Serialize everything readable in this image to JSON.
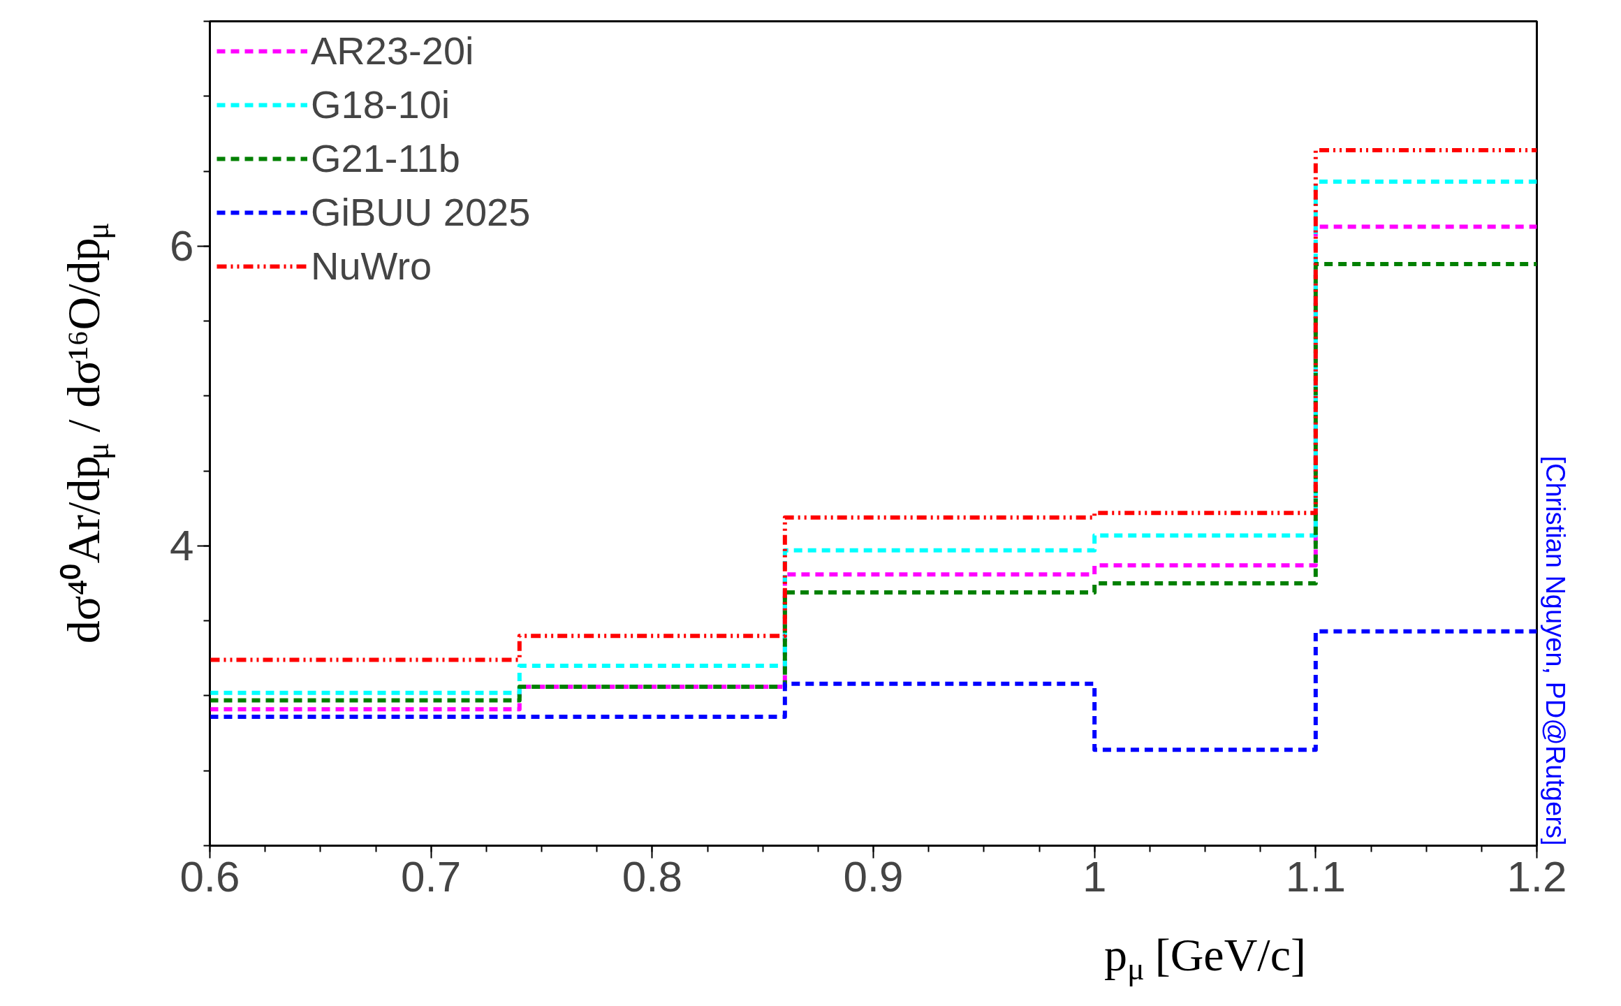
{
  "chart_data": {
    "type": "histogram",
    "bins": [
      0.6,
      0.74,
      0.86,
      1.0,
      1.1,
      1.2
    ],
    "series": [
      {
        "name": "AR23-20i",
        "color": "#ff00ff",
        "line_style": "dashed",
        "values": [
          2.91,
          3.06,
          3.81,
          3.87,
          6.13
        ]
      },
      {
        "name": "G18-10i",
        "color": "#00ffff",
        "line_style": "dashed",
        "values": [
          3.02,
          3.2,
          3.97,
          4.07,
          6.43
        ]
      },
      {
        "name": "G21-11b",
        "color": "#008000",
        "line_style": "dashed",
        "values": [
          2.97,
          3.06,
          3.69,
          3.75,
          5.88
        ]
      },
      {
        "name": "GiBUU 2025",
        "color": "#0000ff",
        "line_style": "dashed",
        "values": [
          2.86,
          2.86,
          3.08,
          2.64,
          3.43
        ]
      },
      {
        "name": "NuWro",
        "color": "#ff0000",
        "line_style": "dashdotdot",
        "values": [
          3.24,
          3.4,
          4.19,
          4.22,
          6.64
        ]
      }
    ],
    "xlim": [
      0.6,
      1.2
    ],
    "xticks": [
      0.6,
      0.7,
      0.8,
      0.9,
      1,
      1.1,
      1.2
    ],
    "ylim": [
      2,
      7.5
    ],
    "yticks": [
      4,
      6
    ],
    "xlabel": "p$_{μ}$ [GeV/c]",
    "ylabel": "dσ⁴⁰Ar/dp$_{μ}$ / dσ¹⁶O/dp$_{μ}$",
    "annotations": [
      "[Christian Nguyen, PD@Rutgers]"
    ],
    "legend": "top left",
    "grid": false
  }
}
